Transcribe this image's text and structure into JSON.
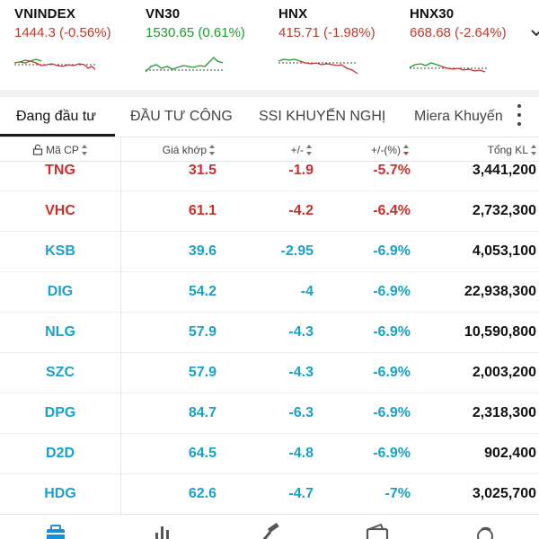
{
  "colors": {
    "down": "#c9302c",
    "floor": "#17a2c9",
    "up": "#1e9b2e",
    "accent": "#1a8fd8"
  },
  "indices": [
    {
      "name": "VNINDEX",
      "value": "1444.3 (-0.56%)",
      "trend": "down"
    },
    {
      "name": "VN30",
      "value": "1530.65 (0.61%)",
      "trend": "up"
    },
    {
      "name": "HNX",
      "value": "415.71 (-1.98%)",
      "trend": "down"
    },
    {
      "name": "HNX30",
      "value": "668.68 (-2.64%)",
      "trend": "down"
    }
  ],
  "tabs": [
    {
      "label": "Đang đầu tư",
      "active": true
    },
    {
      "label": "ĐẦU TƯ CÔNG",
      "active": false
    },
    {
      "label": "SSI KHUYẾN NGHỊ",
      "active": false
    },
    {
      "label": "Miera Khuyến",
      "active": false
    }
  ],
  "columns": {
    "symbol": "Mã CP",
    "price": "Giá khớp",
    "change": "+/-",
    "percent": "+/-(%)",
    "volume": "Tổng KL"
  },
  "rows": [
    {
      "symbol": "TNG",
      "price": "31.5",
      "change": "-1.9",
      "percent": "-5.7%",
      "volume": "3,441,200",
      "color": "red"
    },
    {
      "symbol": "VHC",
      "price": "61.1",
      "change": "-4.2",
      "percent": "-6.4%",
      "volume": "2,732,300",
      "color": "red"
    },
    {
      "symbol": "KSB",
      "price": "39.6",
      "change": "-2.95",
      "percent": "-6.9%",
      "volume": "4,053,100",
      "color": "cyan"
    },
    {
      "symbol": "DIG",
      "price": "54.2",
      "change": "-4",
      "percent": "-6.9%",
      "volume": "22,938,300",
      "color": "cyan"
    },
    {
      "symbol": "NLG",
      "price": "57.9",
      "change": "-4.3",
      "percent": "-6.9%",
      "volume": "10,590,800",
      "color": "cyan"
    },
    {
      "symbol": "SZC",
      "price": "57.9",
      "change": "-4.3",
      "percent": "-6.9%",
      "volume": "2,003,200",
      "color": "cyan"
    },
    {
      "symbol": "DPG",
      "price": "84.7",
      "change": "-6.3",
      "percent": "-6.9%",
      "volume": "2,318,300",
      "color": "cyan"
    },
    {
      "symbol": "D2D",
      "price": "64.5",
      "change": "-4.8",
      "percent": "-6.9%",
      "volume": "902,400",
      "color": "cyan"
    },
    {
      "symbol": "HDG",
      "price": "62.6",
      "change": "-4.7",
      "percent": "-7%",
      "volume": "3,025,700",
      "color": "cyan"
    }
  ],
  "bottom_nav": [
    {
      "icon": "portfolio-icon",
      "active": true
    },
    {
      "icon": "bar-chart-icon",
      "active": false
    },
    {
      "icon": "gavel-icon",
      "active": false
    },
    {
      "icon": "wallet-icon",
      "active": false
    },
    {
      "icon": "money-cycle-icon",
      "active": false
    }
  ]
}
